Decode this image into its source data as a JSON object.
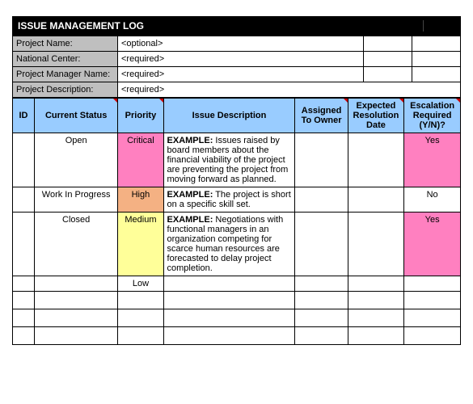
{
  "title": "ISSUE MANAGEMENT LOG",
  "meta": {
    "projectNameLabel": "Project Name:",
    "projectNameValue": "<optional>",
    "nationalCenterLabel": "National Center:",
    "nationalCenterValue": "<required>",
    "projectManagerLabel": "Project Manager Name:",
    "projectManagerValue": "<required>",
    "projectDescLabel": "Project Description:",
    "projectDescValue": "<required>"
  },
  "headers": {
    "id": "ID",
    "status": "Current Status",
    "priority": "Priority",
    "desc": "Issue Description",
    "owner": "Assigned To Owner",
    "date": "Expected Resolution Date",
    "esc": "Escalation Required (Y/N)?"
  },
  "rows": [
    {
      "id": "",
      "status": "Open",
      "priority": "Critical",
      "priorityClass": "p-critical",
      "descPrefix": "EXAMPLE:",
      "desc": " Issues raised by board members about the financial viability of the project are preventing the project from moving forward as planned.",
      "owner": "",
      "date": "",
      "esc": "Yes",
      "escClass": "esc-yes"
    },
    {
      "id": "",
      "status": "Work In Progress",
      "priority": "High",
      "priorityClass": "p-high",
      "descPrefix": "EXAMPLE:",
      "desc": " The project is short on a specific skill set.",
      "owner": "",
      "date": "",
      "esc": "No",
      "escClass": "esc-no"
    },
    {
      "id": "",
      "status": "Closed",
      "priority": "Medium",
      "priorityClass": "p-medium",
      "descPrefix": "EXAMPLE:",
      "desc": " Negotiations with functional managers in an organization competing for scarce human resources are forecasted to delay project completion.",
      "owner": "",
      "date": "",
      "esc": "Yes",
      "escClass": "esc-yes"
    },
    {
      "id": "",
      "status": "",
      "priority": "Low",
      "priorityClass": "p-low",
      "descPrefix": "",
      "desc": "",
      "owner": "",
      "date": "",
      "esc": "",
      "escClass": "cell"
    }
  ],
  "colors": {
    "headerBlue": "#99ccff",
    "metaGray": "#bfbfbf",
    "critical": "#ff80c0",
    "high": "#f4b183",
    "medium": "#ffff99",
    "titleBg": "#000000",
    "titleFg": "#ffffff",
    "border": "#000000"
  }
}
